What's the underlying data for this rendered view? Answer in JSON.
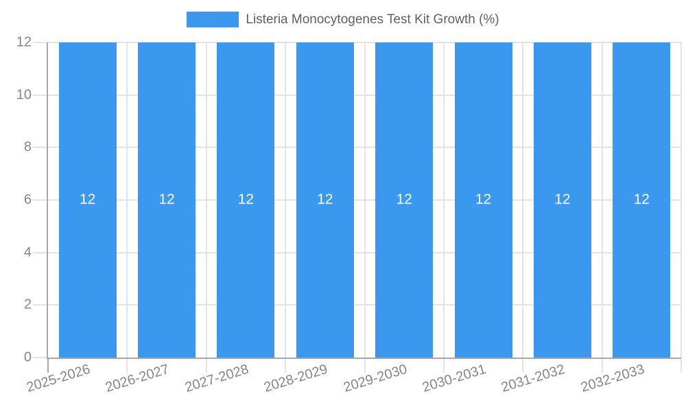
{
  "legend": {
    "items": [
      {
        "label": "Listeria Monocytogenes Test Kit Growth (%)",
        "color": "#3a99ee"
      }
    ],
    "position": "top"
  },
  "chart_data": {
    "type": "bar",
    "title": "Listeria Monocytogenes Test Kit Growth (%)",
    "categories": [
      "2025-2026",
      "2026-2027",
      "2027-2028",
      "2028-2029",
      "2029-2030",
      "2030-2031",
      "2031-2032",
      "2032-2033"
    ],
    "values": [
      12,
      12,
      12,
      12,
      12,
      12,
      12,
      12
    ],
    "bar_value_labels": [
      "12",
      "12",
      "12",
      "12",
      "12",
      "12",
      "12",
      "12"
    ],
    "xlabel": "",
    "ylabel": "",
    "ylim": [
      0,
      12
    ],
    "yticks": [
      0,
      2,
      4,
      6,
      8,
      10,
      12
    ],
    "grid": true,
    "legend_position": "top",
    "x_label_rotation_deg": -17,
    "colors": {
      "bar": "#3a99ee",
      "bar_label": "#ffffff",
      "grid": "#e3e3e3",
      "axis": "#a8a8a8",
      "tick_label": "#858585",
      "legend_text": "#5e5e5e"
    }
  }
}
